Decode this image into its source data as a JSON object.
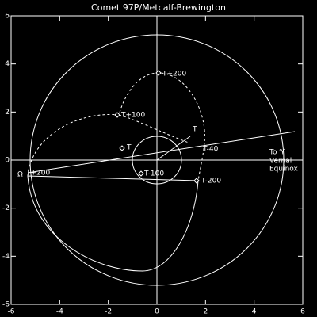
{
  "chart_data": {
    "type": "orbit",
    "title": "Comet 97P/Metcalf-Brewington",
    "xlim": [
      -6,
      6
    ],
    "ylim": [
      -6,
      6
    ],
    "xticks": [
      -6,
      -4,
      -2,
      0,
      2,
      4,
      6
    ],
    "yticks": [
      -6,
      -4,
      -2,
      0,
      2,
      4,
      6
    ],
    "annotations": [
      "T+200",
      "T+100",
      "T",
      "T",
      "T-40",
      "T-100",
      "T-200",
      "Ω",
      "T+200",
      "To ♈",
      "Vernal",
      "Equinox"
    ]
  }
}
